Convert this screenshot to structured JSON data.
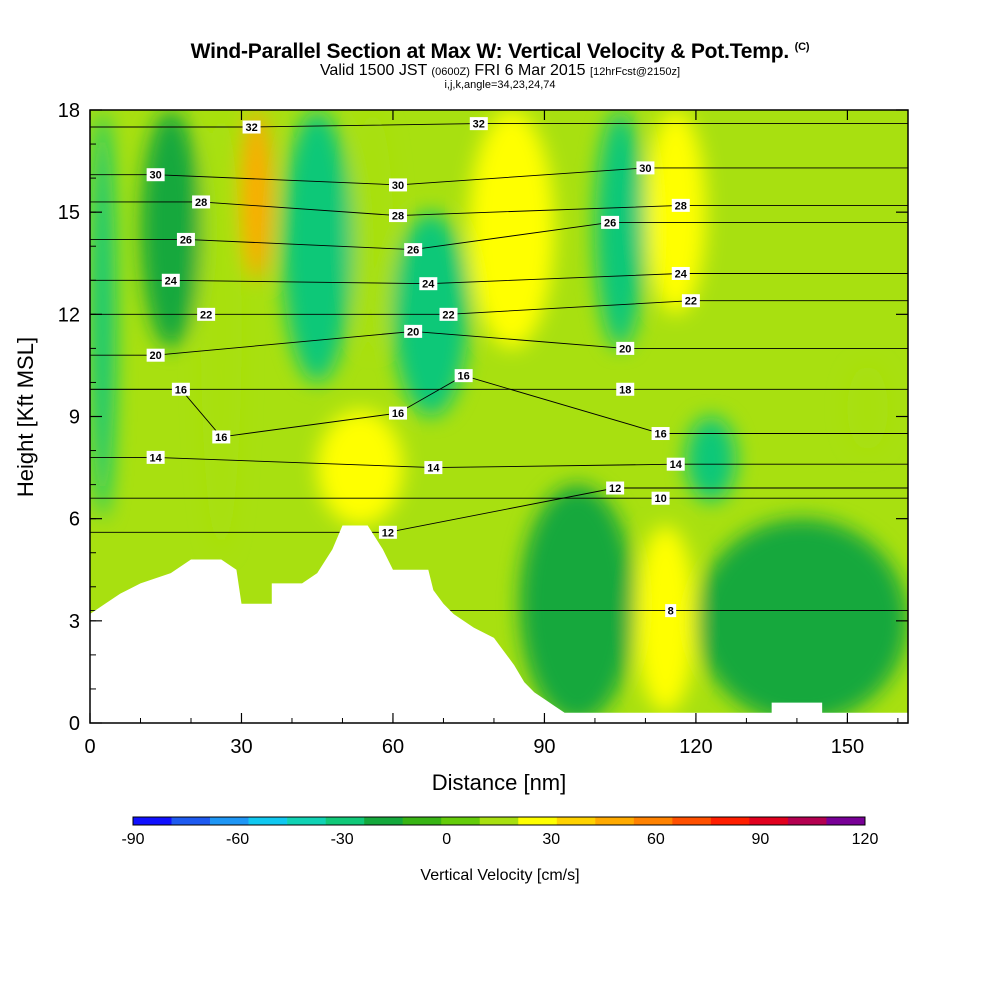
{
  "chart_data": {
    "type": "heatmap",
    "title": "Wind-Parallel Section at Max W: Vertical Velocity & Pot.Temp.",
    "title_mark": "(C)",
    "subtitle_prefix": "Valid 1500 JST",
    "subtitle_utc": "(0600Z)",
    "subtitle_date": "FRI 6 Mar 2015",
    "subtitle_forecast": "[12hrFcst@2150z]",
    "subtitle_params": "i,j,k,angle=34,23,24,74",
    "xlabel": "Distance [nm]",
    "ylabel": "Height [Kft MSL]",
    "xlim": [
      0,
      162
    ],
    "ylim": [
      0,
      18
    ],
    "x_ticks": [
      0,
      30,
      60,
      90,
      120,
      150
    ],
    "y_ticks": [
      0,
      3,
      6,
      9,
      12,
      15,
      18
    ],
    "colorbar": {
      "label": "Vertical Velocity [cm/s]",
      "ticks": [
        -90,
        -60,
        -30,
        0,
        30,
        60,
        90,
        120
      ],
      "levels": [
        -90,
        -75,
        -60,
        -45,
        -30,
        -15,
        0,
        15,
        30,
        45,
        60,
        75,
        90,
        105,
        120
      ],
      "colors": [
        "#1010ff",
        "#1e5af0",
        "#1e96f5",
        "#10c8f0",
        "#10d2b4",
        "#10c878",
        "#14a83c",
        "#38b414",
        "#64cc0a",
        "#a8e010",
        "#ffff00",
        "#ffd200",
        "#ffaa00",
        "#ff8200",
        "#ff5000",
        "#ff1e00",
        "#e1001e",
        "#b40050",
        "#780096"
      ]
    },
    "velocity_regions": [
      {
        "x": [
          0,
          5
        ],
        "y": [
          6,
          18
        ],
        "value": -30
      },
      {
        "x": [
          10,
          22
        ],
        "y": [
          11,
          18
        ],
        "value": -15
      },
      {
        "x": [
          22,
          30
        ],
        "y": [
          5,
          18
        ],
        "value": 15
      },
      {
        "x": [
          30,
          36
        ],
        "y": [
          13,
          18
        ],
        "value": 45
      },
      {
        "x": [
          38,
          52
        ],
        "y": [
          10,
          18
        ],
        "value": -30
      },
      {
        "x": [
          52,
          60
        ],
        "y": [
          11,
          18
        ],
        "value": 20
      },
      {
        "x": [
          45,
          62
        ],
        "y": [
          5.8,
          9.2
        ],
        "value": 25
      },
      {
        "x": [
          60,
          75
        ],
        "y": [
          9,
          15
        ],
        "value": -25
      },
      {
        "x": [
          75,
          92
        ],
        "y": [
          11,
          18
        ],
        "value": 25
      },
      {
        "x": [
          100,
          110
        ],
        "y": [
          11,
          18
        ],
        "value": -25
      },
      {
        "x": [
          110,
          122
        ],
        "y": [
          12,
          18
        ],
        "value": 25
      },
      {
        "x": [
          118,
          128
        ],
        "y": [
          6.5,
          9
        ],
        "value": -25
      },
      {
        "x": [
          108,
          120
        ],
        "y": [
          0.3,
          5.8
        ],
        "value": 25
      },
      {
        "x": [
          85,
          108
        ],
        "y": [
          0,
          7
        ],
        "value": -15
      },
      {
        "x": [
          120,
          162
        ],
        "y": [
          0,
          6
        ],
        "value": -15
      },
      {
        "x": [
          150,
          158
        ],
        "y": [
          8,
          10.5
        ],
        "value": 20
      }
    ],
    "terrain_height_kft": [
      [
        0,
        3.2
      ],
      [
        3,
        3.5
      ],
      [
        6,
        3.8
      ],
      [
        10,
        4.1
      ],
      [
        16,
        4.4
      ],
      [
        20,
        4.8
      ],
      [
        26,
        4.8
      ],
      [
        29,
        4.5
      ],
      [
        30,
        3.5
      ],
      [
        36,
        3.5
      ],
      [
        36,
        4.1
      ],
      [
        42,
        4.1
      ],
      [
        45,
        4.4
      ],
      [
        48,
        5.1
      ],
      [
        50,
        5.8
      ],
      [
        55,
        5.8
      ],
      [
        58,
        5.1
      ],
      [
        60,
        4.5
      ],
      [
        67,
        4.5
      ],
      [
        68,
        3.9
      ],
      [
        70,
        3.5
      ],
      [
        72,
        3.2
      ],
      [
        76,
        2.8
      ],
      [
        80,
        2.5
      ],
      [
        82,
        2.1
      ],
      [
        84,
        1.7
      ],
      [
        86,
        1.2
      ],
      [
        88,
        0.9
      ],
      [
        90,
        0.7
      ],
      [
        92,
        0.5
      ],
      [
        94,
        0.3
      ],
      [
        135,
        0.3
      ],
      [
        135,
        0.6
      ],
      [
        145,
        0.6
      ],
      [
        145,
        0.3
      ],
      [
        162,
        0.3
      ]
    ],
    "isentropes": [
      {
        "value": 8,
        "label_x": 115,
        "label_y": 3.3
      },
      {
        "value": 10,
        "label_x": 113,
        "label_y": 6.6
      },
      {
        "value": 12,
        "label_x": 59,
        "label_y": 5.6
      },
      {
        "value": 12,
        "label_x": 104,
        "label_y": 6.9
      },
      {
        "value": 14,
        "label_x": 13,
        "label_y": 7.8
      },
      {
        "value": 14,
        "label_x": 68,
        "label_y": 7.5
      },
      {
        "value": 14,
        "label_x": 116,
        "label_y": 7.6
      },
      {
        "value": 16,
        "label_x": 26,
        "label_y": 8.4
      },
      {
        "value": 16,
        "label_x": 61,
        "label_y": 9.1
      },
      {
        "value": 16,
        "label_x": 18,
        "label_y": 9.8
      },
      {
        "value": 16,
        "label_x": 113,
        "label_y": 8.5
      },
      {
        "value": 16,
        "label_x": 74,
        "label_y": 10.2
      },
      {
        "value": 18,
        "label_x": 106,
        "label_y": 9.8
      },
      {
        "value": 20,
        "label_x": 13,
        "label_y": 10.8
      },
      {
        "value": 20,
        "label_x": 64,
        "label_y": 11.5
      },
      {
        "value": 20,
        "label_x": 106,
        "label_y": 11.0
      },
      {
        "value": 22,
        "label_x": 23,
        "label_y": 12.0
      },
      {
        "value": 22,
        "label_x": 71,
        "label_y": 12.0
      },
      {
        "value": 22,
        "label_x": 119,
        "label_y": 12.4
      },
      {
        "value": 24,
        "label_x": 16,
        "label_y": 13.0
      },
      {
        "value": 24,
        "label_x": 67,
        "label_y": 12.9
      },
      {
        "value": 24,
        "label_x": 117,
        "label_y": 13.2
      },
      {
        "value": 26,
        "label_x": 19,
        "label_y": 14.2
      },
      {
        "value": 26,
        "label_x": 64,
        "label_y": 13.9
      },
      {
        "value": 26,
        "label_x": 103,
        "label_y": 14.7
      },
      {
        "value": 28,
        "label_x": 22,
        "label_y": 15.3
      },
      {
        "value": 28,
        "label_x": 61,
        "label_y": 14.9
      },
      {
        "value": 28,
        "label_x": 117,
        "label_y": 15.2
      },
      {
        "value": 30,
        "label_x": 13,
        "label_y": 16.1
      },
      {
        "value": 30,
        "label_x": 61,
        "label_y": 15.8
      },
      {
        "value": 30,
        "label_x": 110,
        "label_y": 16.3
      },
      {
        "value": 32,
        "label_x": 32,
        "label_y": 17.5
      },
      {
        "value": 32,
        "label_x": 77,
        "label_y": 17.6
      }
    ]
  }
}
